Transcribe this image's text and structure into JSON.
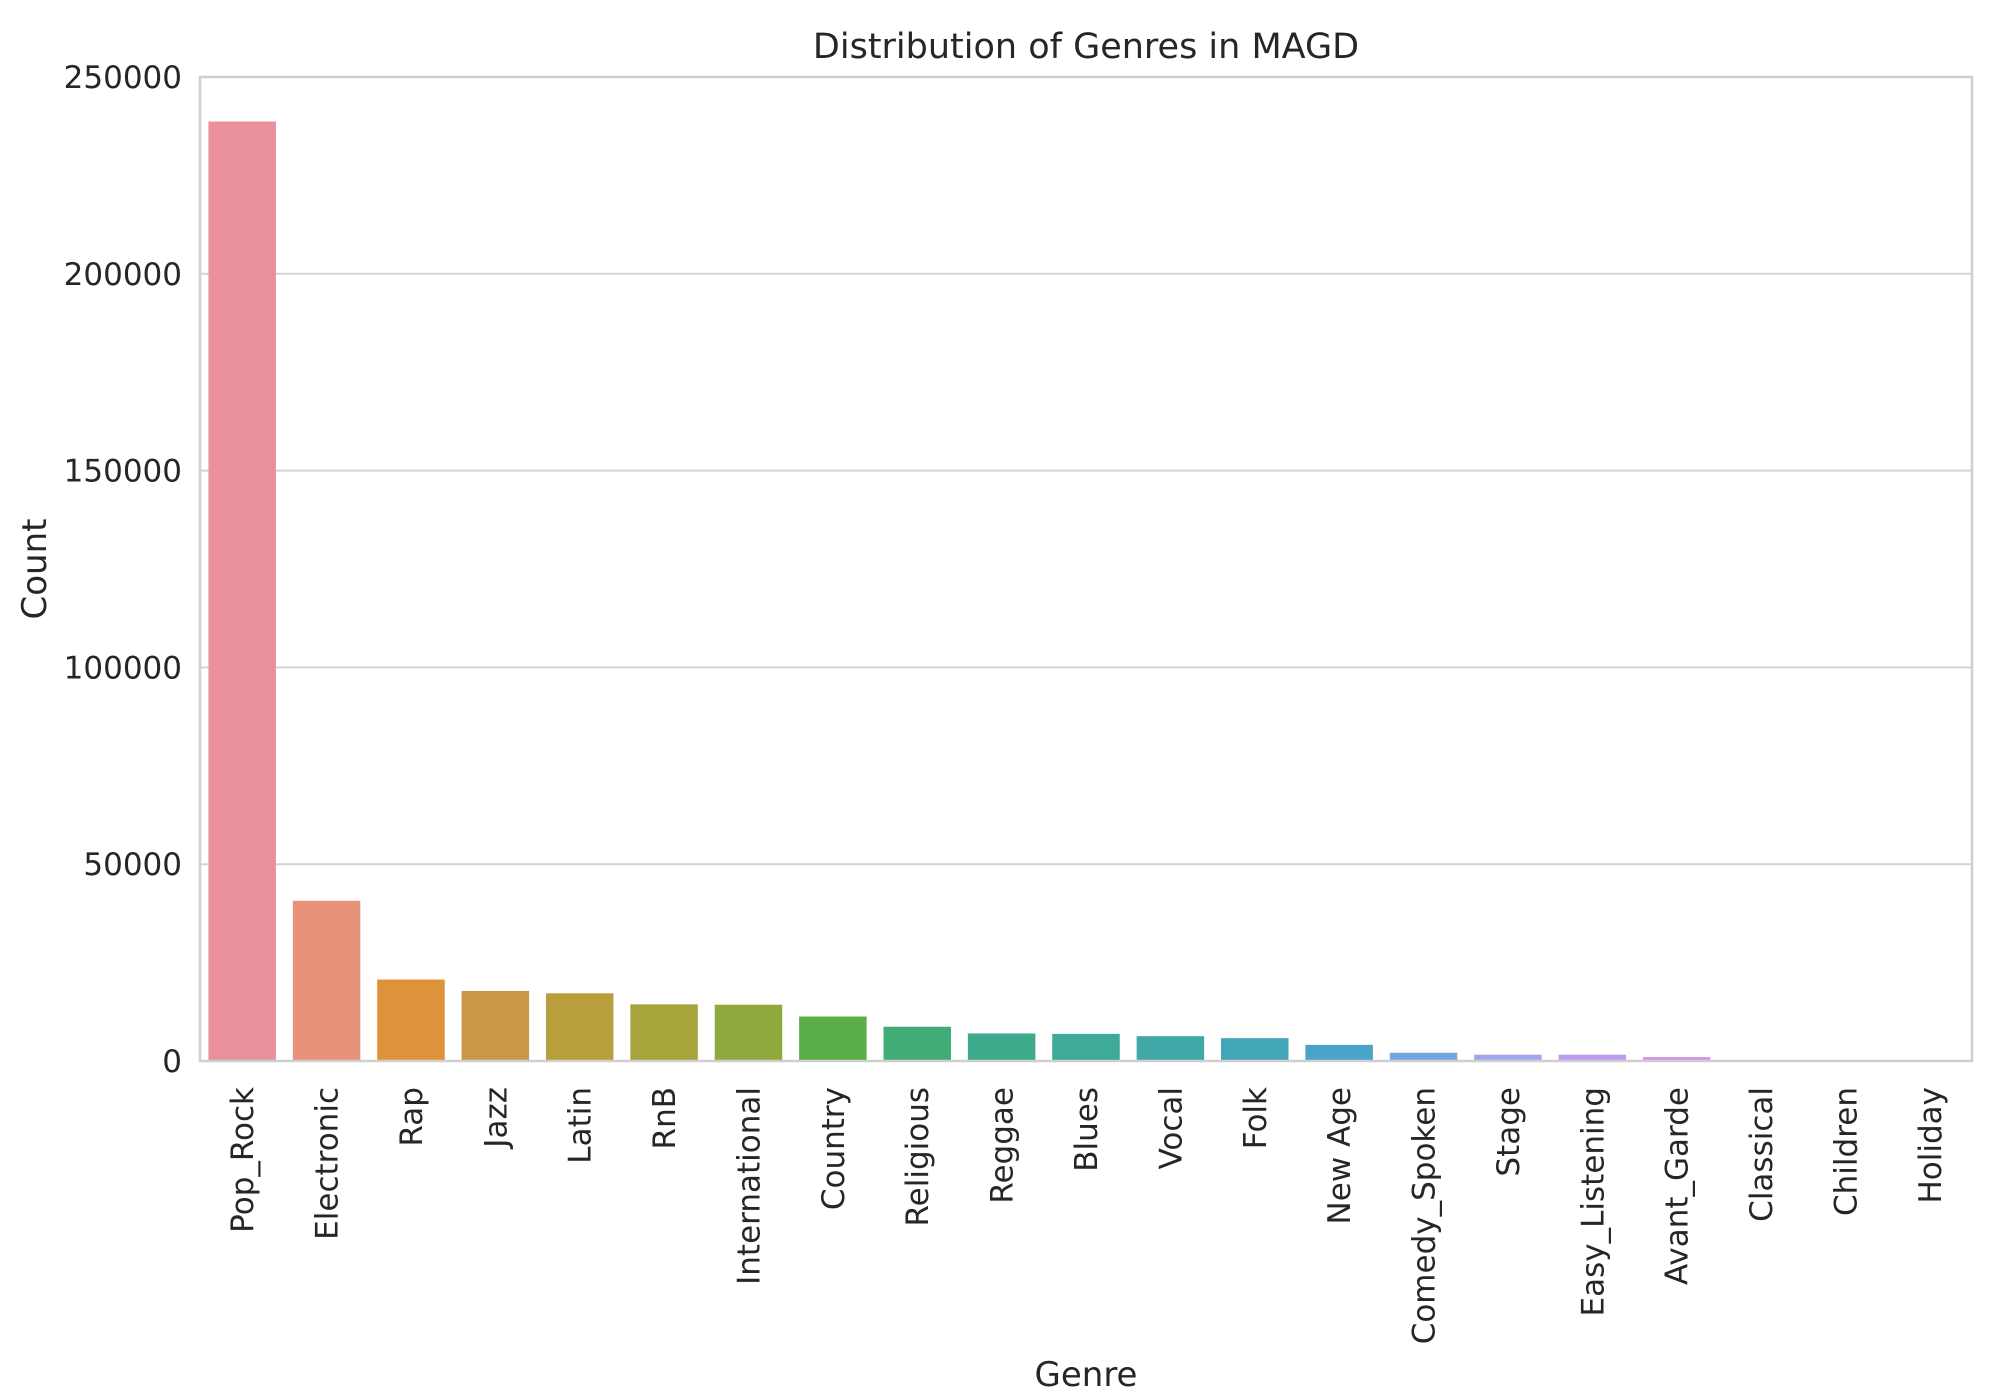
{
  "chart_data": {
    "type": "bar",
    "title": "Distribution of Genres in MAGD",
    "xlabel": "Genre",
    "ylabel": "Count",
    "ylim": [
      0,
      250000
    ],
    "yticks": [
      0,
      50000,
      100000,
      150000,
      200000,
      250000
    ],
    "grid": "horizontal",
    "categories": [
      "Pop_Rock",
      "Electronic",
      "Rap",
      "Jazz",
      "Latin",
      "RnB",
      "International",
      "Country",
      "Religious",
      "Reggae",
      "Blues",
      "Vocal",
      "Folk",
      "New Age",
      "Comedy_Spoken",
      "Stage",
      "Easy_Listening",
      "Avant_Garde",
      "Classical",
      "Children",
      "Holiday"
    ],
    "values": [
      238700,
      40700,
      20700,
      17800,
      17200,
      14400,
      14300,
      11300,
      8700,
      7000,
      6900,
      6300,
      5800,
      4100,
      2100,
      1600,
      1600,
      1000,
      200,
      100,
      100
    ],
    "colors": [
      "#e8919d",
      "#e79379",
      "#de923a",
      "#c99845",
      "#b89e3c",
      "#a6a43a",
      "#8fa93d",
      "#5aae47",
      "#40ad77",
      "#3eaa8c",
      "#3fa99a",
      "#40a8a7",
      "#43a6b6",
      "#4aa4ca",
      "#72a7e2",
      "#a2a6ec",
      "#bf9cf0",
      "#d594ec",
      "#e28fe0",
      "#e98dd0",
      "#ed90bd"
    ]
  }
}
